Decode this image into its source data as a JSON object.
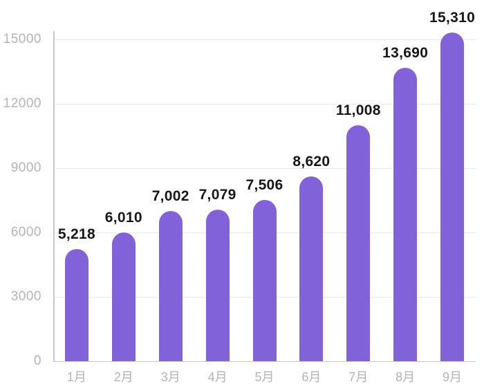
{
  "chart_data": {
    "type": "bar",
    "title": "",
    "categories": [
      "1月",
      "2月",
      "3月",
      "4月",
      "5月",
      "6月",
      "7月",
      "8月",
      "9月"
    ],
    "values": [
      5218,
      6010,
      7002,
      7079,
      7506,
      8620,
      11008,
      13690,
      15310
    ],
    "value_labels": [
      "5,218",
      "6,010",
      "7,002",
      "7,079",
      "7,506",
      "8,620",
      "11,008",
      "13,690",
      "15,310"
    ],
    "xlabel": "",
    "ylabel": "",
    "yticks": [
      0,
      3000,
      6000,
      9000,
      12000,
      15000
    ],
    "ytick_labels": [
      "0",
      "3000",
      "6000",
      "9000",
      "12000",
      "15000"
    ],
    "ylim": [
      0,
      15500
    ],
    "grid": "horizontal",
    "legend_position": "none",
    "colors": {
      "bar": "#8262d9",
      "gridline": "#e9e9ed",
      "axis": "#c9c9d3",
      "tick_label": "#b3b3bc",
      "value_label": "#171717",
      "background": "#ffffff"
    }
  }
}
